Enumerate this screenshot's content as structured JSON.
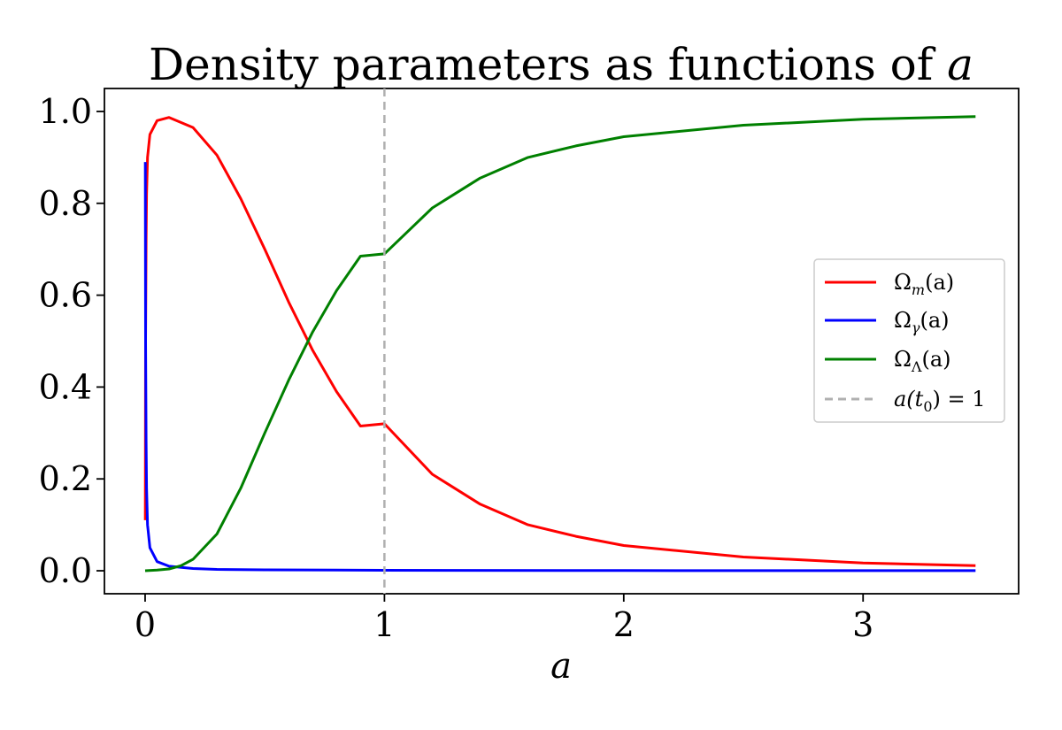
{
  "chart_data": {
    "type": "line",
    "title": "Density parameters as functions of a",
    "title_prefix": "Density parameters as functions of ",
    "title_var": "a",
    "xlabel": "a",
    "ylabel": "",
    "xlim": [
      -0.17,
      3.65
    ],
    "ylim": [
      -0.05,
      1.05
    ],
    "xticks": [
      0,
      1,
      2,
      3
    ],
    "xtick_labels": [
      "0",
      "1",
      "2",
      "3"
    ],
    "yticks": [
      0.0,
      0.2,
      0.4,
      0.6,
      0.8,
      1.0
    ],
    "ytick_labels": [
      "0.0",
      "0.2",
      "0.4",
      "0.6",
      "0.8",
      "1.0"
    ],
    "grid": false,
    "legend_placement": "center-right",
    "series": [
      {
        "name": "Ω_m(a)",
        "legend_main": "Ω",
        "legend_sub": "m",
        "legend_tail": "(a)",
        "color": "#ff0000",
        "x": [
          0.001,
          0.002,
          0.004,
          0.006,
          0.01,
          0.02,
          0.05,
          0.1,
          0.2,
          0.3,
          0.4,
          0.5,
          0.6,
          0.7,
          0.8,
          0.9,
          1.0,
          1.2,
          1.4,
          1.6,
          1.8,
          2.0,
          2.5,
          3.0,
          3.47
        ],
        "y": [
          0.11,
          0.5,
          0.72,
          0.82,
          0.9,
          0.95,
          0.98,
          0.987,
          0.965,
          0.905,
          0.81,
          0.7,
          0.585,
          0.48,
          0.39,
          0.315,
          0.32,
          0.21,
          0.145,
          0.1,
          0.075,
          0.055,
          0.03,
          0.017,
          0.011
        ]
      },
      {
        "name": "Ω_γ(a)",
        "legend_main": "Ω",
        "legend_sub": "γ",
        "legend_tail": "(a)",
        "color": "#0000ff",
        "x": [
          0.001,
          0.002,
          0.004,
          0.006,
          0.01,
          0.02,
          0.05,
          0.1,
          0.2,
          0.3,
          0.5,
          1.0,
          2.0,
          3.47
        ],
        "y": [
          0.89,
          0.5,
          0.28,
          0.18,
          0.1,
          0.05,
          0.02,
          0.01,
          0.005,
          0.003,
          0.002,
          0.001,
          0.0005,
          0.0003
        ]
      },
      {
        "name": "Ω_Λ(a)",
        "legend_main": "Ω",
        "legend_sub": "Λ",
        "legend_tail": "(a)",
        "color": "#008000",
        "x": [
          0.0,
          0.05,
          0.1,
          0.15,
          0.2,
          0.3,
          0.4,
          0.5,
          0.6,
          0.7,
          0.8,
          0.9,
          1.0,
          1.2,
          1.4,
          1.6,
          1.8,
          2.0,
          2.5,
          3.0,
          3.47
        ],
        "y": [
          0.0,
          0.0015,
          0.004,
          0.011,
          0.025,
          0.08,
          0.18,
          0.3,
          0.415,
          0.52,
          0.61,
          0.685,
          0.69,
          0.79,
          0.855,
          0.9,
          0.925,
          0.945,
          0.97,
          0.983,
          0.989
        ]
      }
    ],
    "reference_line": {
      "name": "a(t_0) = 1",
      "legend_text": "a(t",
      "legend_sub": "0",
      "legend_tail": ") = 1",
      "x": 1,
      "color": "#b0b0b0",
      "style": "dashed"
    }
  }
}
